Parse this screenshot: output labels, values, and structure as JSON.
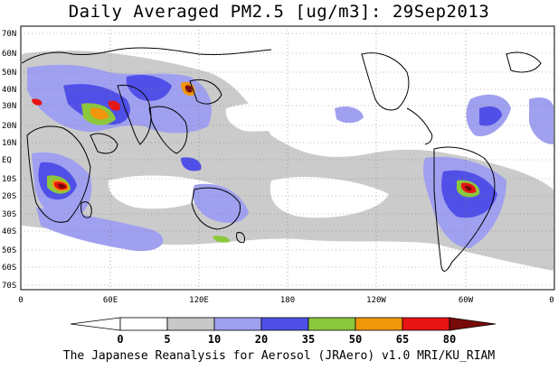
{
  "title": "Daily Averaged PM2.5 [ug/m3]: 29Sep2013",
  "footer": "The Japanese Reanalysis for Aerosol (JRAero) v1.0 MRI/KU_RIAM",
  "lat_labels": [
    "70N",
    "60N",
    "50N",
    "40N",
    "30N",
    "20N",
    "10N",
    "EQ",
    "10S",
    "20S",
    "30S",
    "40S",
    "50S",
    "60S",
    "70S"
  ],
  "lon_labels": [
    "0",
    "60E",
    "120E",
    "180",
    "120W",
    "60W",
    "0"
  ],
  "colorbar": {
    "thresholds": [
      "0",
      "5",
      "10",
      "20",
      "35",
      "50",
      "65",
      "80"
    ],
    "colors": [
      "#ffffff",
      "#c8c8c8",
      "#a0a0f0",
      "#5050e8",
      "#8cc83c",
      "#f0960a",
      "#e81414",
      "#780a0a"
    ]
  },
  "map_data": {
    "grid": "dotted",
    "lat_range": [
      -75,
      75
    ],
    "lon_range": [
      0,
      360
    ]
  }
}
